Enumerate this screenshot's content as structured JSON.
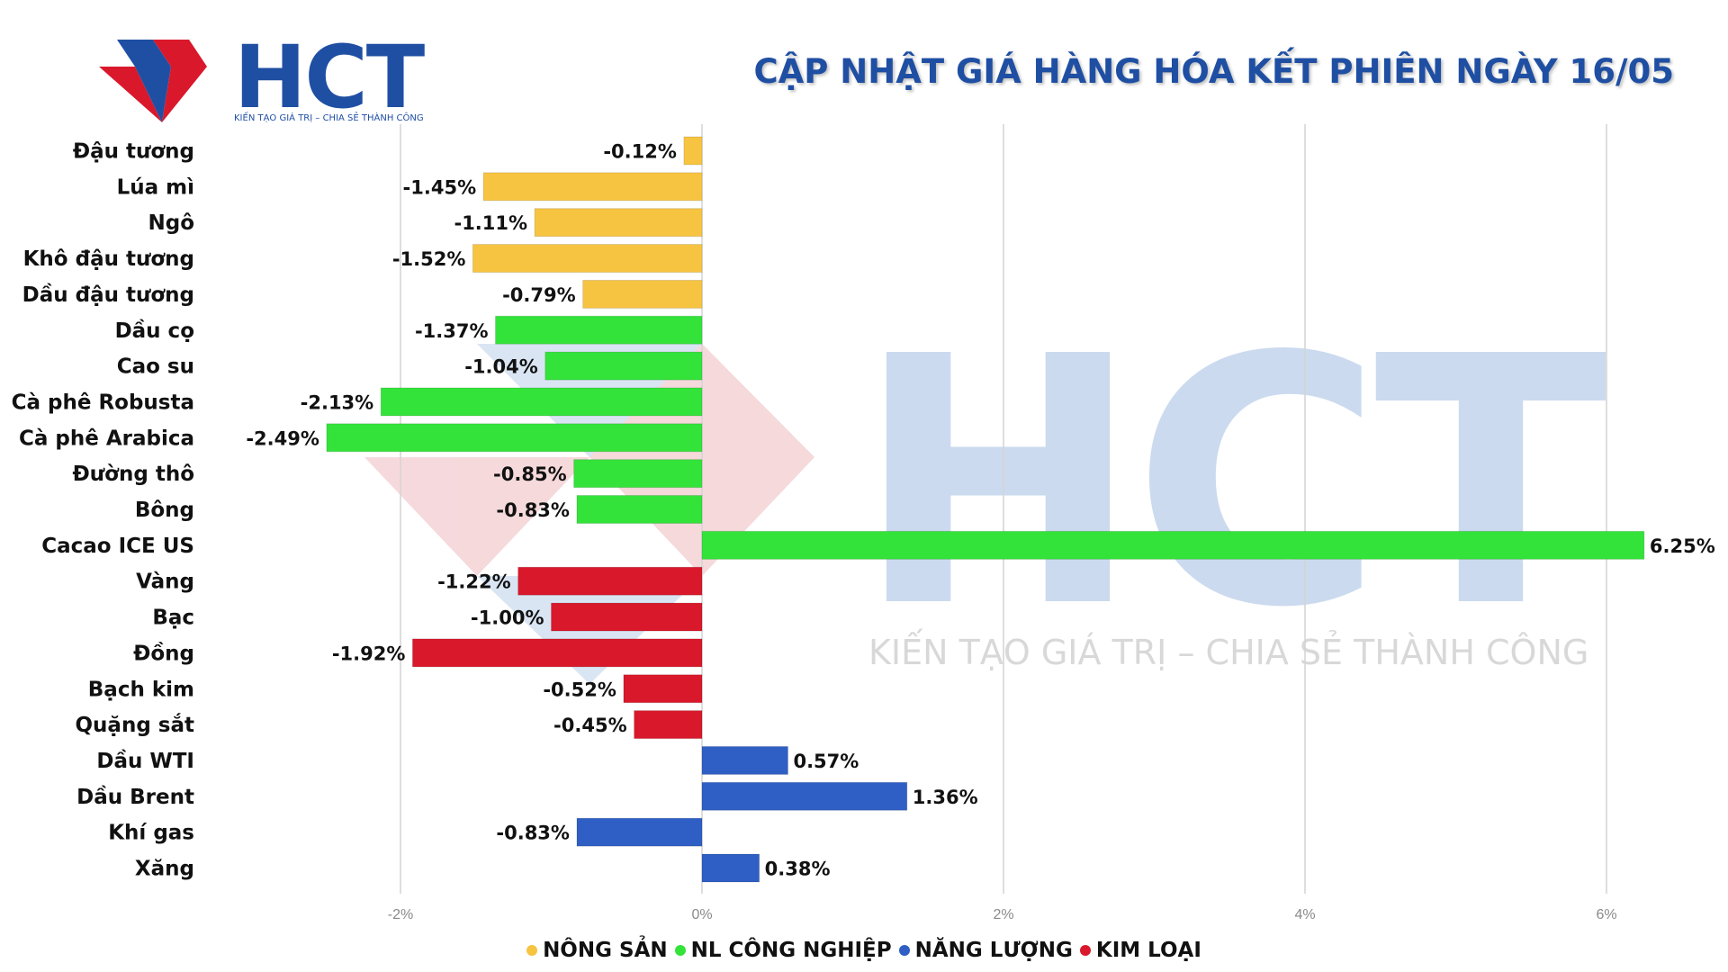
{
  "logo": {
    "text": "HCT",
    "tagline": "KIẾN TẠO GIÁ TRỊ – CHIA SẺ THÀNH CÔNG"
  },
  "watermark": {
    "text": "HCT",
    "tagline": "KIẾN TẠO GIÁ TRỊ – CHIA SẺ THÀNH CÔNG"
  },
  "chart_data": {
    "type": "bar",
    "orientation": "horizontal",
    "title": "CẬP NHẬT GIÁ HÀNG HÓA KẾT PHIÊN NGÀY 16/05",
    "xlabel": "",
    "ylabel": "",
    "xlim": [
      -2.5,
      6.5
    ],
    "xticks": [
      -2,
      0,
      2,
      4,
      6
    ],
    "xtick_labels": [
      "-2%",
      "0%",
      "2%",
      "4%",
      "6%"
    ],
    "grid": true,
    "legend_position": "bottom",
    "series": [
      {
        "name": "NÔNG SẢN",
        "color": "#f7c441"
      },
      {
        "name": "NL CÔNG NGHIỆP",
        "color": "#33e33a"
      },
      {
        "name": "NĂNG LƯỢNG",
        "color": "#2f5fc4"
      },
      {
        "name": "KIM LOẠI",
        "color": "#d9182b"
      }
    ],
    "categories": [
      "Đậu tương",
      "Lúa mì",
      "Ngô",
      "Khô đậu tương",
      "Dầu đậu tương",
      "Dầu cọ",
      "Cao su",
      "Cà phê Robusta",
      "Cà phê Arabica",
      "Đường thô",
      "Bông",
      "Cacao ICE US",
      "Vàng",
      "Bạc",
      "Đồng",
      "Bạch kim",
      "Quặng sắt",
      "Dầu WTI",
      "Dầu Brent",
      "Khí gas",
      "Xăng"
    ],
    "values": [
      -0.12,
      -1.45,
      -1.11,
      -1.52,
      -0.79,
      -1.37,
      -1.04,
      -2.13,
      -2.49,
      -0.85,
      -0.83,
      6.25,
      -1.22,
      -1.0,
      -1.92,
      -0.52,
      -0.45,
      0.57,
      1.36,
      -0.83,
      0.38
    ],
    "value_labels": [
      "-0.12%",
      "-1.45%",
      "-1.11%",
      "-1.52%",
      "-0.79%",
      "-1.37%",
      "-1.04%",
      "-2.13%",
      "-2.49%",
      "-0.85%",
      "-0.83%",
      "6.25%",
      "-1.22%",
      "-1.00%",
      "-1.92%",
      "-0.52%",
      "-0.45%",
      "0.57%",
      "1.36%",
      "-0.83%",
      "0.38%"
    ],
    "groups": [
      0,
      0,
      0,
      0,
      0,
      1,
      1,
      1,
      1,
      1,
      1,
      1,
      3,
      3,
      3,
      3,
      3,
      2,
      2,
      2,
      2
    ]
  }
}
